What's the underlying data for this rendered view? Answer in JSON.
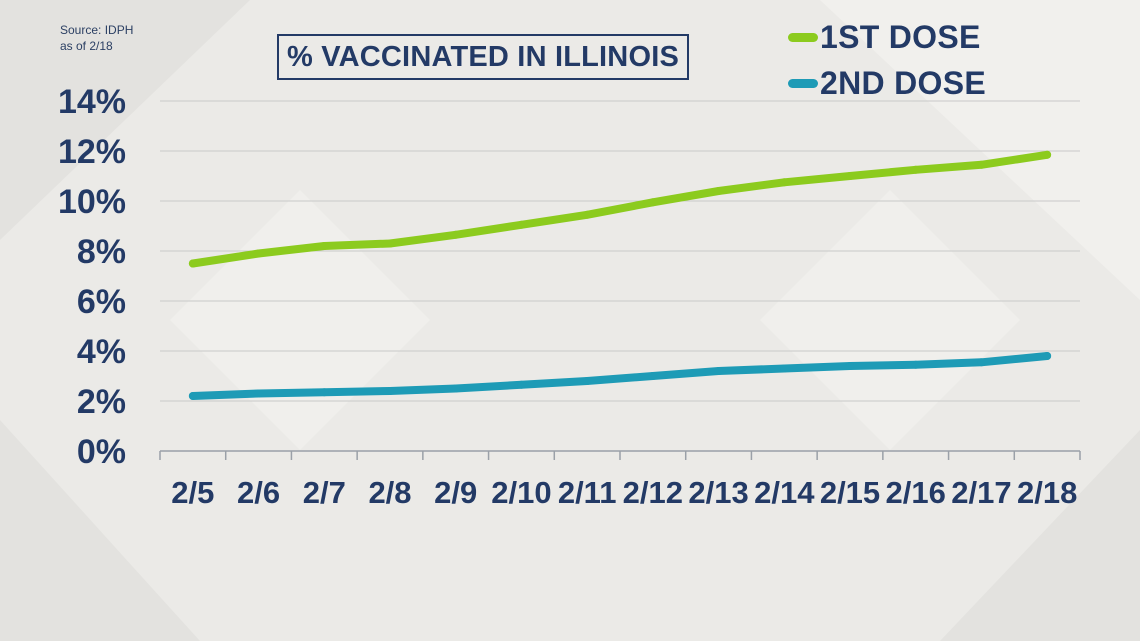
{
  "source": {
    "line1": "Source: IDPH",
    "line2": "as of 2/18"
  },
  "title": "% VACCINATED IN ILLINOIS",
  "legend": [
    {
      "label": "1ST DOSE",
      "color": "#8ccb1e"
    },
    {
      "label": "2ND DOSE",
      "color": "#1e9bb6"
    }
  ],
  "colors": {
    "text": "#233a66",
    "grid": "#c9c9c9",
    "background": "#ebeae7"
  },
  "chart_data": {
    "type": "line",
    "title": "% VACCINATED IN ILLINOIS",
    "xlabel": "",
    "ylabel": "",
    "categories": [
      "2/5",
      "2/6",
      "2/7",
      "2/8",
      "2/9",
      "2/10",
      "2/11",
      "2/12",
      "2/13",
      "2/14",
      "2/15",
      "2/16",
      "2/17",
      "2/18"
    ],
    "y_ticks": [
      "0%",
      "2%",
      "4%",
      "6%",
      "8%",
      "10%",
      "12%",
      "14%"
    ],
    "ylim": [
      0,
      14
    ],
    "grid": true,
    "legend_position": "top-right",
    "series": [
      {
        "name": "1ST DOSE",
        "color": "#8ccb1e",
        "values": [
          7.5,
          7.9,
          8.2,
          8.3,
          8.65,
          9.05,
          9.45,
          9.95,
          10.4,
          10.75,
          11.0,
          11.25,
          11.45,
          11.85
        ]
      },
      {
        "name": "2ND DOSE",
        "color": "#1e9bb6",
        "values": [
          2.2,
          2.3,
          2.35,
          2.4,
          2.5,
          2.65,
          2.8,
          3.0,
          3.2,
          3.3,
          3.4,
          3.45,
          3.55,
          3.8
        ]
      }
    ]
  }
}
